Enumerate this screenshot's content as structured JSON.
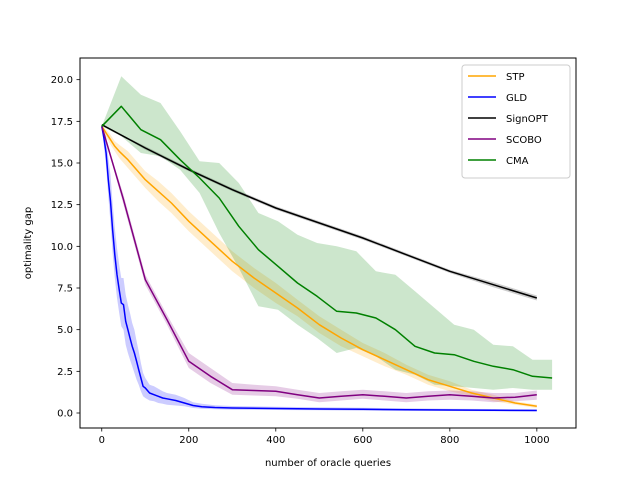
{
  "chart_data": {
    "type": "line",
    "title": "",
    "xlabel": "number of oracle queries",
    "ylabel": "optimality gap",
    "xlim": [
      -50,
      1090
    ],
    "ylim": [
      -0.9,
      21.3
    ],
    "xticks": [
      0,
      200,
      400,
      600,
      800,
      1000
    ],
    "yticks": [
      0.0,
      2.5,
      5.0,
      7.5,
      10.0,
      12.5,
      15.0,
      17.5,
      20.0
    ],
    "ytick_labels": [
      "0.0",
      "2.5",
      "5.0",
      "7.5",
      "10.0",
      "12.5",
      "15.0",
      "17.5",
      "20.0"
    ],
    "grid": false,
    "legend_position": "top-right",
    "series": [
      {
        "name": "STP",
        "color": "#ffa500",
        "x": [
          0,
          10,
          20,
          30,
          40,
          60,
          80,
          100,
          130,
          160,
          200,
          250,
          300,
          350,
          400,
          450,
          500,
          550,
          600,
          650,
          700,
          750,
          800,
          850,
          900,
          950,
          1000
        ],
        "y": [
          17.2,
          16.8,
          16.4,
          16.0,
          15.7,
          15.2,
          14.6,
          14.0,
          13.3,
          12.6,
          11.5,
          10.3,
          9.1,
          8.1,
          7.2,
          6.3,
          5.3,
          4.5,
          3.8,
          3.2,
          2.6,
          2.0,
          1.6,
          1.2,
          0.9,
          0.6,
          0.4
        ],
        "lower": [
          17.2,
          16.6,
          16.1,
          15.7,
          15.3,
          14.7,
          14.1,
          13.5,
          12.7,
          12.0,
          10.9,
          9.7,
          8.5,
          7.5,
          6.6,
          5.8,
          4.8,
          4.0,
          3.4,
          2.8,
          2.3,
          1.7,
          1.3,
          1.0,
          0.7,
          0.5,
          0.3
        ],
        "upper": [
          17.2,
          17.0,
          16.7,
          16.3,
          16.1,
          15.7,
          15.1,
          14.5,
          13.9,
          13.2,
          12.1,
          10.9,
          9.7,
          8.7,
          7.8,
          6.8,
          5.8,
          5.0,
          4.2,
          3.6,
          2.9,
          2.3,
          1.9,
          1.4,
          1.1,
          0.7,
          0.5
        ]
      },
      {
        "name": "GLD",
        "color": "#0000ff",
        "x": [
          0,
          5,
          10,
          15,
          20,
          25,
          30,
          35,
          40,
          45,
          50,
          55,
          60,
          65,
          70,
          75,
          80,
          85,
          90,
          95,
          100,
          110,
          120,
          130,
          140,
          150,
          170,
          190,
          210,
          230,
          260,
          300,
          400,
          500,
          600,
          700,
          800,
          900,
          1000
        ],
        "y": [
          17.2,
          16.5,
          15.6,
          14.0,
          12.7,
          11.0,
          9.5,
          8.3,
          7.4,
          6.6,
          6.5,
          5.5,
          5.0,
          4.5,
          4.0,
          3.6,
          3.1,
          2.6,
          2.1,
          1.6,
          1.5,
          1.2,
          1.1,
          1.0,
          0.9,
          0.85,
          0.75,
          0.6,
          0.45,
          0.38,
          0.33,
          0.3,
          0.27,
          0.24,
          0.22,
          0.2,
          0.18,
          0.16,
          0.15
        ],
        "lower": [
          17.2,
          16.0,
          14.8,
          13.0,
          11.4,
          9.6,
          8.1,
          6.9,
          6.0,
          5.2,
          5.0,
          4.1,
          3.6,
          3.2,
          2.8,
          2.4,
          2.0,
          1.7,
          1.3,
          1.0,
          0.9,
          0.75,
          0.7,
          0.6,
          0.55,
          0.5,
          0.45,
          0.4,
          0.3,
          0.25,
          0.22,
          0.2,
          0.18,
          0.16,
          0.14,
          0.13,
          0.12,
          0.11,
          0.1
        ],
        "upper": [
          17.2,
          17.0,
          16.6,
          15.3,
          14.3,
          12.6,
          11.1,
          9.9,
          8.9,
          8.1,
          8.1,
          7.1,
          6.5,
          6.0,
          5.4,
          5.0,
          4.3,
          3.7,
          3.0,
          2.4,
          2.1,
          1.7,
          1.6,
          1.45,
          1.3,
          1.2,
          1.1,
          0.9,
          0.65,
          0.55,
          0.46,
          0.42,
          0.38,
          0.34,
          0.31,
          0.28,
          0.26,
          0.24,
          0.22
        ]
      },
      {
        "name": "SignOPT",
        "color": "#000000",
        "x": [
          0,
          100,
          200,
          300,
          400,
          500,
          600,
          700,
          800,
          900,
          1000
        ],
        "y": [
          17.3,
          15.9,
          14.6,
          13.4,
          12.3,
          11.4,
          10.5,
          9.5,
          8.5,
          7.7,
          6.9
        ],
        "lower": [
          17.3,
          15.8,
          14.5,
          13.3,
          12.2,
          11.3,
          10.4,
          9.4,
          8.4,
          7.55,
          6.75
        ],
        "upper": [
          17.3,
          16.0,
          14.7,
          13.5,
          12.4,
          11.5,
          10.6,
          9.6,
          8.6,
          7.85,
          7.05
        ]
      },
      {
        "name": "SCOBO",
        "color": "#800080",
        "x": [
          0,
          50,
          100,
          150,
          200,
          250,
          300,
          350,
          400,
          450,
          500,
          550,
          600,
          650,
          700,
          750,
          800,
          850,
          900,
          950,
          1000
        ],
        "y": [
          17.2,
          12.8,
          8.0,
          5.6,
          3.1,
          2.2,
          1.4,
          1.35,
          1.3,
          1.1,
          0.9,
          1.0,
          1.1,
          1.0,
          0.9,
          1.0,
          1.1,
          1.0,
          0.9,
          0.95,
          1.1
        ],
        "lower": [
          17.2,
          12.5,
          7.7,
          5.3,
          2.7,
          1.8,
          1.1,
          1.05,
          1.0,
          0.85,
          0.65,
          0.75,
          0.85,
          0.75,
          0.65,
          0.75,
          0.8,
          0.75,
          0.65,
          0.7,
          0.8
        ],
        "upper": [
          17.2,
          13.1,
          8.3,
          5.9,
          3.6,
          2.7,
          1.8,
          1.7,
          1.6,
          1.4,
          1.2,
          1.3,
          1.4,
          1.3,
          1.2,
          1.3,
          1.35,
          1.3,
          1.2,
          1.2,
          1.35
        ]
      },
      {
        "name": "CMA",
        "color": "#008000",
        "x": [
          0,
          45,
          90,
          135,
          180,
          225,
          270,
          315,
          360,
          405,
          450,
          495,
          540,
          585,
          630,
          675,
          720,
          765,
          810,
          855,
          900,
          945,
          990,
          1035
        ],
        "y": [
          17.2,
          18.4,
          17.0,
          16.4,
          15.2,
          14.1,
          12.9,
          11.2,
          9.8,
          8.8,
          7.8,
          7.0,
          6.1,
          6.0,
          5.7,
          5.0,
          4.0,
          3.6,
          3.5,
          3.1,
          2.8,
          2.6,
          2.2,
          2.1
        ],
        "lower": [
          17.2,
          16.6,
          15.6,
          15.4,
          14.6,
          13.2,
          10.8,
          8.7,
          6.4,
          6.2,
          5.3,
          4.5,
          3.6,
          3.9,
          3.4,
          2.6,
          2.3,
          1.7,
          1.6,
          1.5,
          1.4,
          1.5,
          1.4,
          1.4
        ],
        "upper": [
          17.2,
          20.2,
          19.1,
          18.6,
          16.9,
          15.1,
          15.0,
          13.8,
          12.0,
          11.5,
          10.7,
          10.2,
          10.0,
          9.7,
          8.5,
          8.3,
          7.3,
          6.3,
          5.3,
          5.0,
          4.1,
          4.0,
          3.2,
          3.2
        ]
      }
    ]
  }
}
